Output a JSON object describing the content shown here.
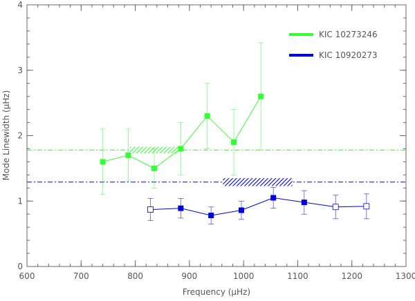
{
  "chart_data": {
    "type": "scatter",
    "title": "",
    "xlabel": "Frequency (μHz)",
    "ylabel": "Mode Linewidth (μHz)",
    "xlim": [
      600,
      1300
    ],
    "ylim": [
      0,
      4
    ],
    "xticks": [
      600,
      700,
      800,
      900,
      1000,
      1100,
      1200,
      1300
    ],
    "yticks": [
      0,
      1,
      2,
      3,
      4
    ],
    "grid": false,
    "legend_position": "top-right",
    "series": [
      {
        "name": "KIC 10273246",
        "color": "#33ff33",
        "marker": "filled-square",
        "points": [
          {
            "x": 740,
            "y": 1.6,
            "err": 0.5,
            "filled": true
          },
          {
            "x": 787,
            "y": 1.7,
            "err": 0.4,
            "filled": true
          },
          {
            "x": 835,
            "y": 1.5,
            "err": 0.3,
            "filled": true
          },
          {
            "x": 884,
            "y": 1.8,
            "err": 0.4,
            "filled": true
          },
          {
            "x": 933,
            "y": 2.3,
            "err": 0.5,
            "filled": true
          },
          {
            "x": 982,
            "y": 1.9,
            "err": 0.5,
            "filled": true
          },
          {
            "x": 1032,
            "y": 2.6,
            "err": 0.82,
            "filled": true
          }
        ],
        "mean_line": 1.78,
        "hatched_band": {
          "x": [
            790,
            880
          ],
          "y": [
            1.73,
            1.83
          ]
        }
      },
      {
        "name": "KIC 10920273",
        "color": "#0000dd",
        "marker": "square",
        "points": [
          {
            "x": 828,
            "y": 0.87,
            "err": 0.17,
            "filled": false
          },
          {
            "x": 884,
            "y": 0.89,
            "err": 0.15,
            "filled": true
          },
          {
            "x": 940,
            "y": 0.78,
            "err": 0.13,
            "filled": true
          },
          {
            "x": 996,
            "y": 0.86,
            "err": 0.14,
            "filled": true
          },
          {
            "x": 1055,
            "y": 1.05,
            "err": 0.16,
            "filled": true
          },
          {
            "x": 1112,
            "y": 0.98,
            "err": 0.18,
            "filled": true
          },
          {
            "x": 1170,
            "y": 0.91,
            "err": 0.18,
            "filled": false
          },
          {
            "x": 1227,
            "y": 0.92,
            "err": 0.19,
            "filled": false
          }
        ],
        "mean_line": 1.29,
        "hatched_band": {
          "x": [
            962,
            1090
          ],
          "y": [
            1.23,
            1.35
          ]
        }
      }
    ]
  }
}
